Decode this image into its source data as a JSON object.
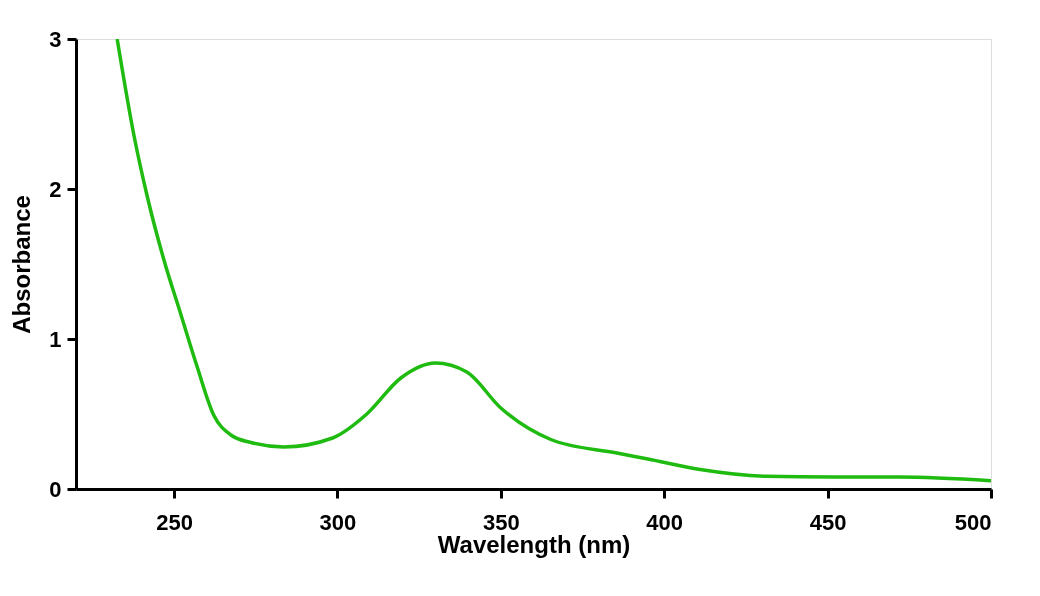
{
  "chart_data": {
    "type": "line",
    "xlabel": "Wavelength (nm)",
    "ylabel": "Absorbance",
    "xlim": [
      220,
      500
    ],
    "xticks": [
      250,
      300,
      350,
      400,
      450,
      500
    ],
    "ylim": [
      0,
      3
    ],
    "yticks": [
      0,
      1,
      2,
      3
    ],
    "grid": false,
    "marker": "none",
    "line_style": "solid",
    "series": [
      {
        "color": "#1fbb10",
        "x": [
          232.6,
          237.8,
          241.7,
          247,
          252,
          257,
          262.2,
          267.4,
          273.5,
          283.6,
          298.5,
          309,
          319.4,
          330,
          339.6,
          350,
          365.3,
          385.5,
          395,
          411,
          431,
          452,
          472,
          500
        ],
        "values": [
          3.0,
          2.35,
          1.96,
          1.52,
          1.17,
          0.82,
          0.49,
          0.36,
          0.31,
          0.28,
          0.34,
          0.5,
          0.74,
          0.84,
          0.78,
          0.54,
          0.33,
          0.24,
          0.2,
          0.13,
          0.085,
          0.08,
          0.08,
          0.055
        ]
      }
    ]
  }
}
